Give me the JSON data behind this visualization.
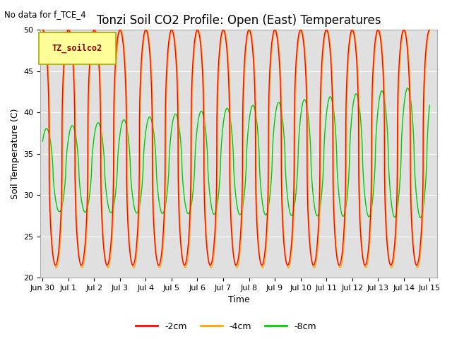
{
  "title": "Tonzi Soil CO2 Profile: Open (East) Temperatures",
  "subtitle": "No data for f_TCE_4",
  "ylabel": "Soil Temperature (C)",
  "xlabel": "Time",
  "legend_label": "TZ_soilco2",
  "ylim": [
    20,
    50
  ],
  "xlim_start": -0.08,
  "xlim_end": 15.3,
  "series": {
    "-2cm": {
      "color": "#FF0000",
      "label": "-2cm"
    },
    "-4cm": {
      "color": "#FFA500",
      "label": "-4cm"
    },
    "-8cm": {
      "color": "#00CC00",
      "label": "-8cm"
    }
  },
  "plot_bg": "#E0E0E0",
  "legend_box_color": "#FFFF99",
  "legend_box_edge": "#AAAA00",
  "xtick_labels": [
    "Jun 30",
    "Jul 1",
    "Jul 2",
    "Jul 3",
    "Jul 4",
    "Jul 5",
    "Jul 6",
    "Jul 7",
    "Jul 8",
    "Jul 9",
    "Jul 10",
    "Jul 11",
    "Jul 12",
    "Jul 13",
    "Jul 14",
    "Jul 15"
  ],
  "xtick_positions": [
    0,
    1,
    2,
    3,
    4,
    5,
    6,
    7,
    8,
    9,
    10,
    11,
    12,
    13,
    14,
    15
  ],
  "ytick_positions": [
    20,
    25,
    30,
    35,
    40,
    45,
    50
  ],
  "grid_color": "#FFFFFF",
  "title_fontsize": 12,
  "axis_fontsize": 9,
  "tick_fontsize": 8,
  "legend_fontsize": 9
}
